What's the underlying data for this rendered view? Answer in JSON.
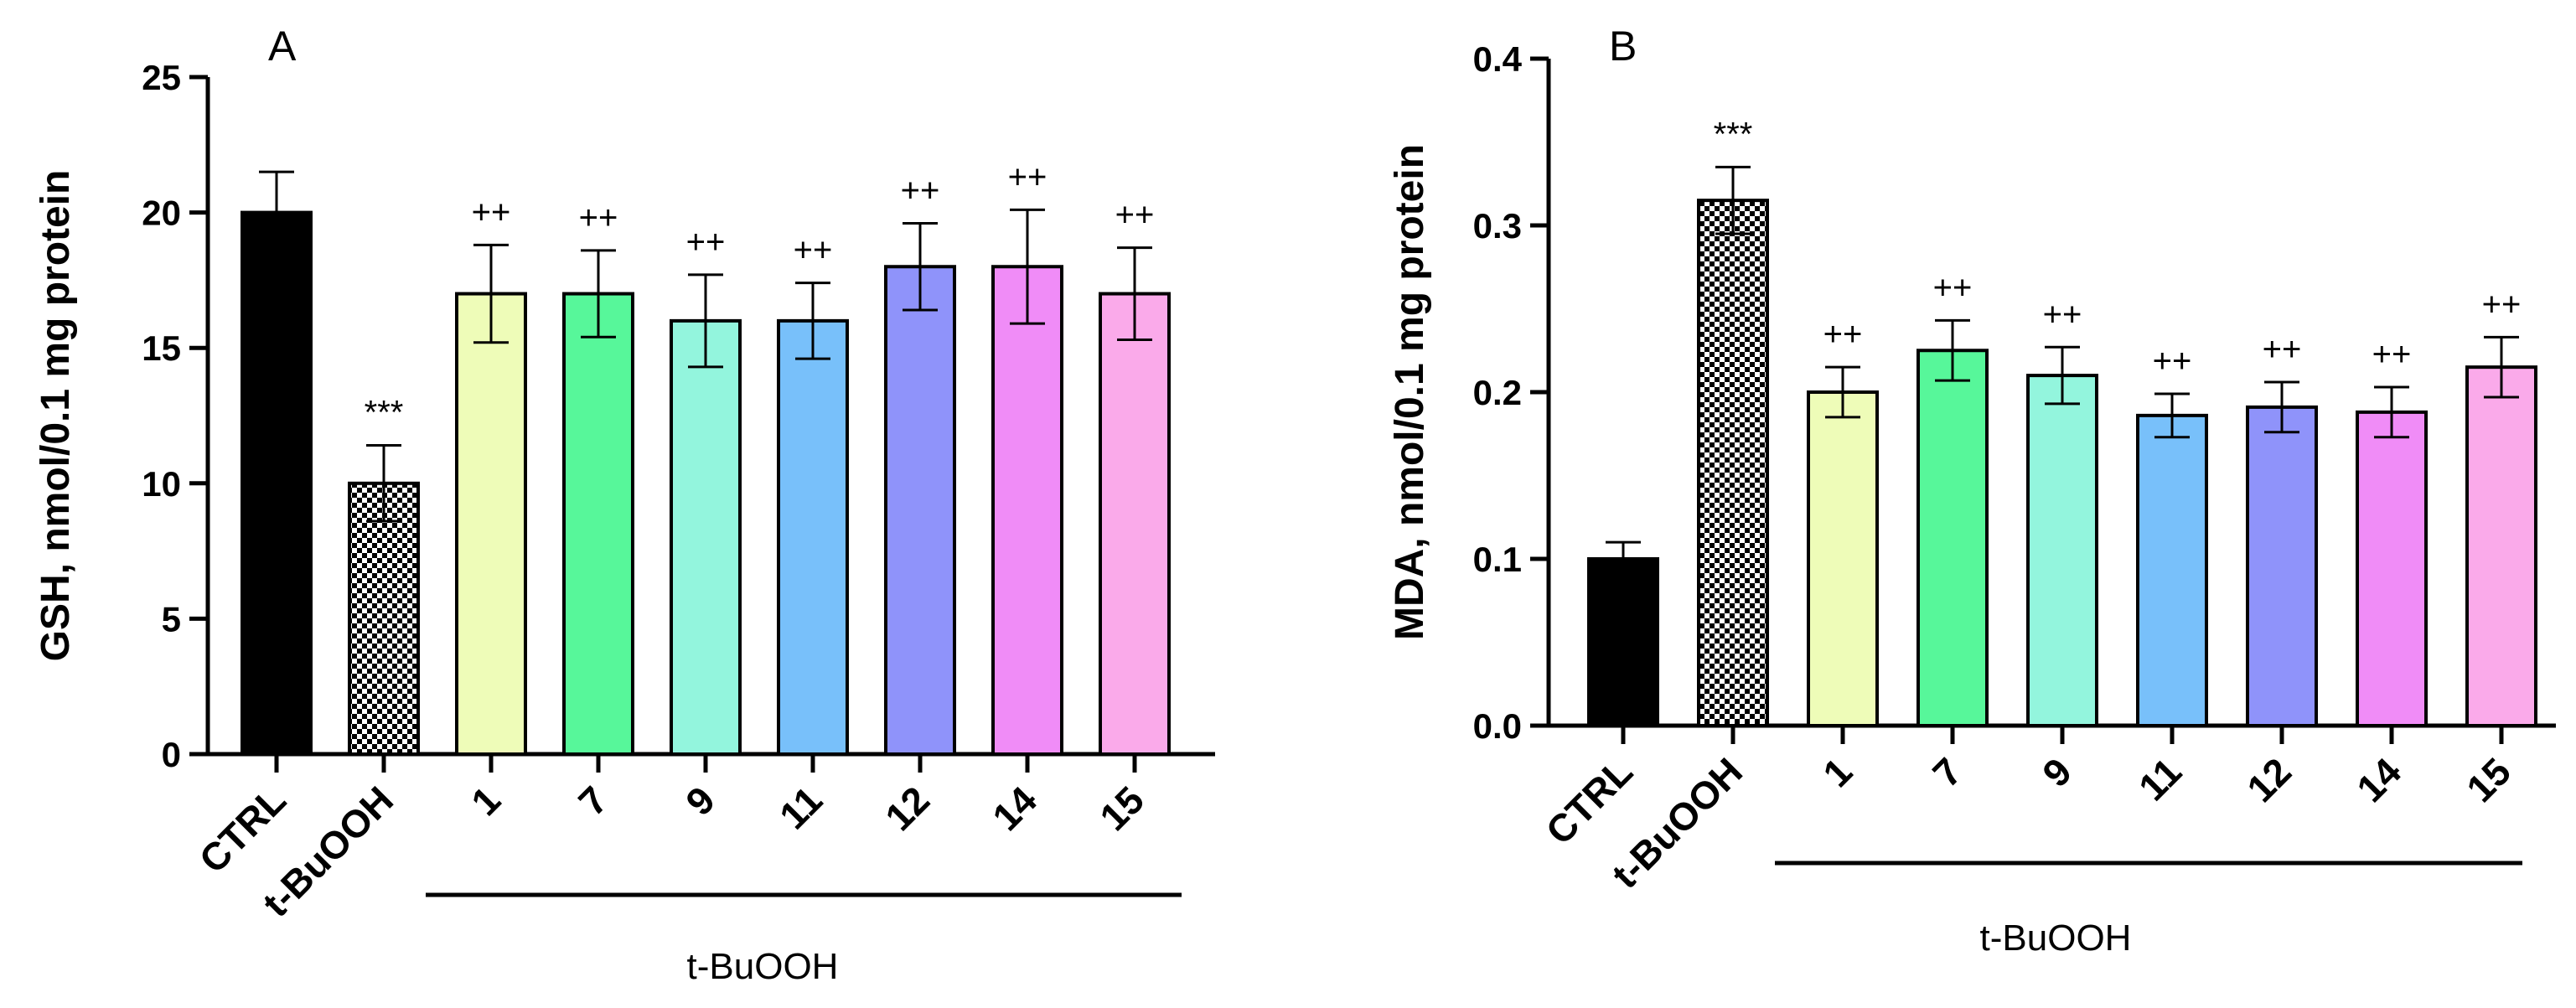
{
  "chart_data": [
    {
      "panel": "A",
      "type": "bar",
      "ylabel": "GSH, nmol/0.1 mg protein",
      "ylim": [
        0,
        25
      ],
      "yticks": [
        0,
        5,
        10,
        15,
        20,
        25
      ],
      "categories": [
        "CTRL",
        "t-BuOOH",
        "1",
        "7",
        "9",
        "11",
        "12",
        "14",
        "15"
      ],
      "values": [
        20,
        10,
        17,
        17,
        16,
        16,
        18,
        18,
        17
      ],
      "errors": [
        1.5,
        1.4,
        1.8,
        1.6,
        1.7,
        1.4,
        1.6,
        2.1,
        1.7
      ],
      "significance": [
        "",
        "***",
        "++",
        "++",
        "++",
        "++",
        "++",
        "++",
        "++"
      ],
      "colors": [
        "#000000",
        "checker",
        "#eefcb8",
        "#57f79a",
        "#93f5dd",
        "#78c0fa",
        "#8f93fa",
        "#f08cf7",
        "#faaaea"
      ],
      "group_label": "t-BuOOH"
    },
    {
      "panel": "B",
      "type": "bar",
      "ylabel": "MDA, nmol/0.1 mg protein",
      "ylim": [
        0,
        0.4
      ],
      "yticks": [
        "0.0",
        "0.1",
        "0.2",
        "0.3",
        "0.4"
      ],
      "categories": [
        "CTRL",
        "t-BuOOH",
        "1",
        "7",
        "9",
        "11",
        "12",
        "14",
        "15"
      ],
      "values": [
        0.1,
        0.315,
        0.2,
        0.225,
        0.21,
        0.186,
        0.191,
        0.188,
        0.215
      ],
      "errors": [
        0.01,
        0.02,
        0.015,
        0.018,
        0.017,
        0.013,
        0.015,
        0.015,
        0.018
      ],
      "significance": [
        "",
        "***",
        "++",
        "++",
        "++",
        "++",
        "++",
        "++",
        "++"
      ],
      "colors": [
        "#000000",
        "checker",
        "#eefcb8",
        "#57f79a",
        "#93f5dd",
        "#78c0fa",
        "#8f93fa",
        "#f08cf7",
        "#faaaea"
      ],
      "group_label": "t-BuOOH"
    }
  ]
}
